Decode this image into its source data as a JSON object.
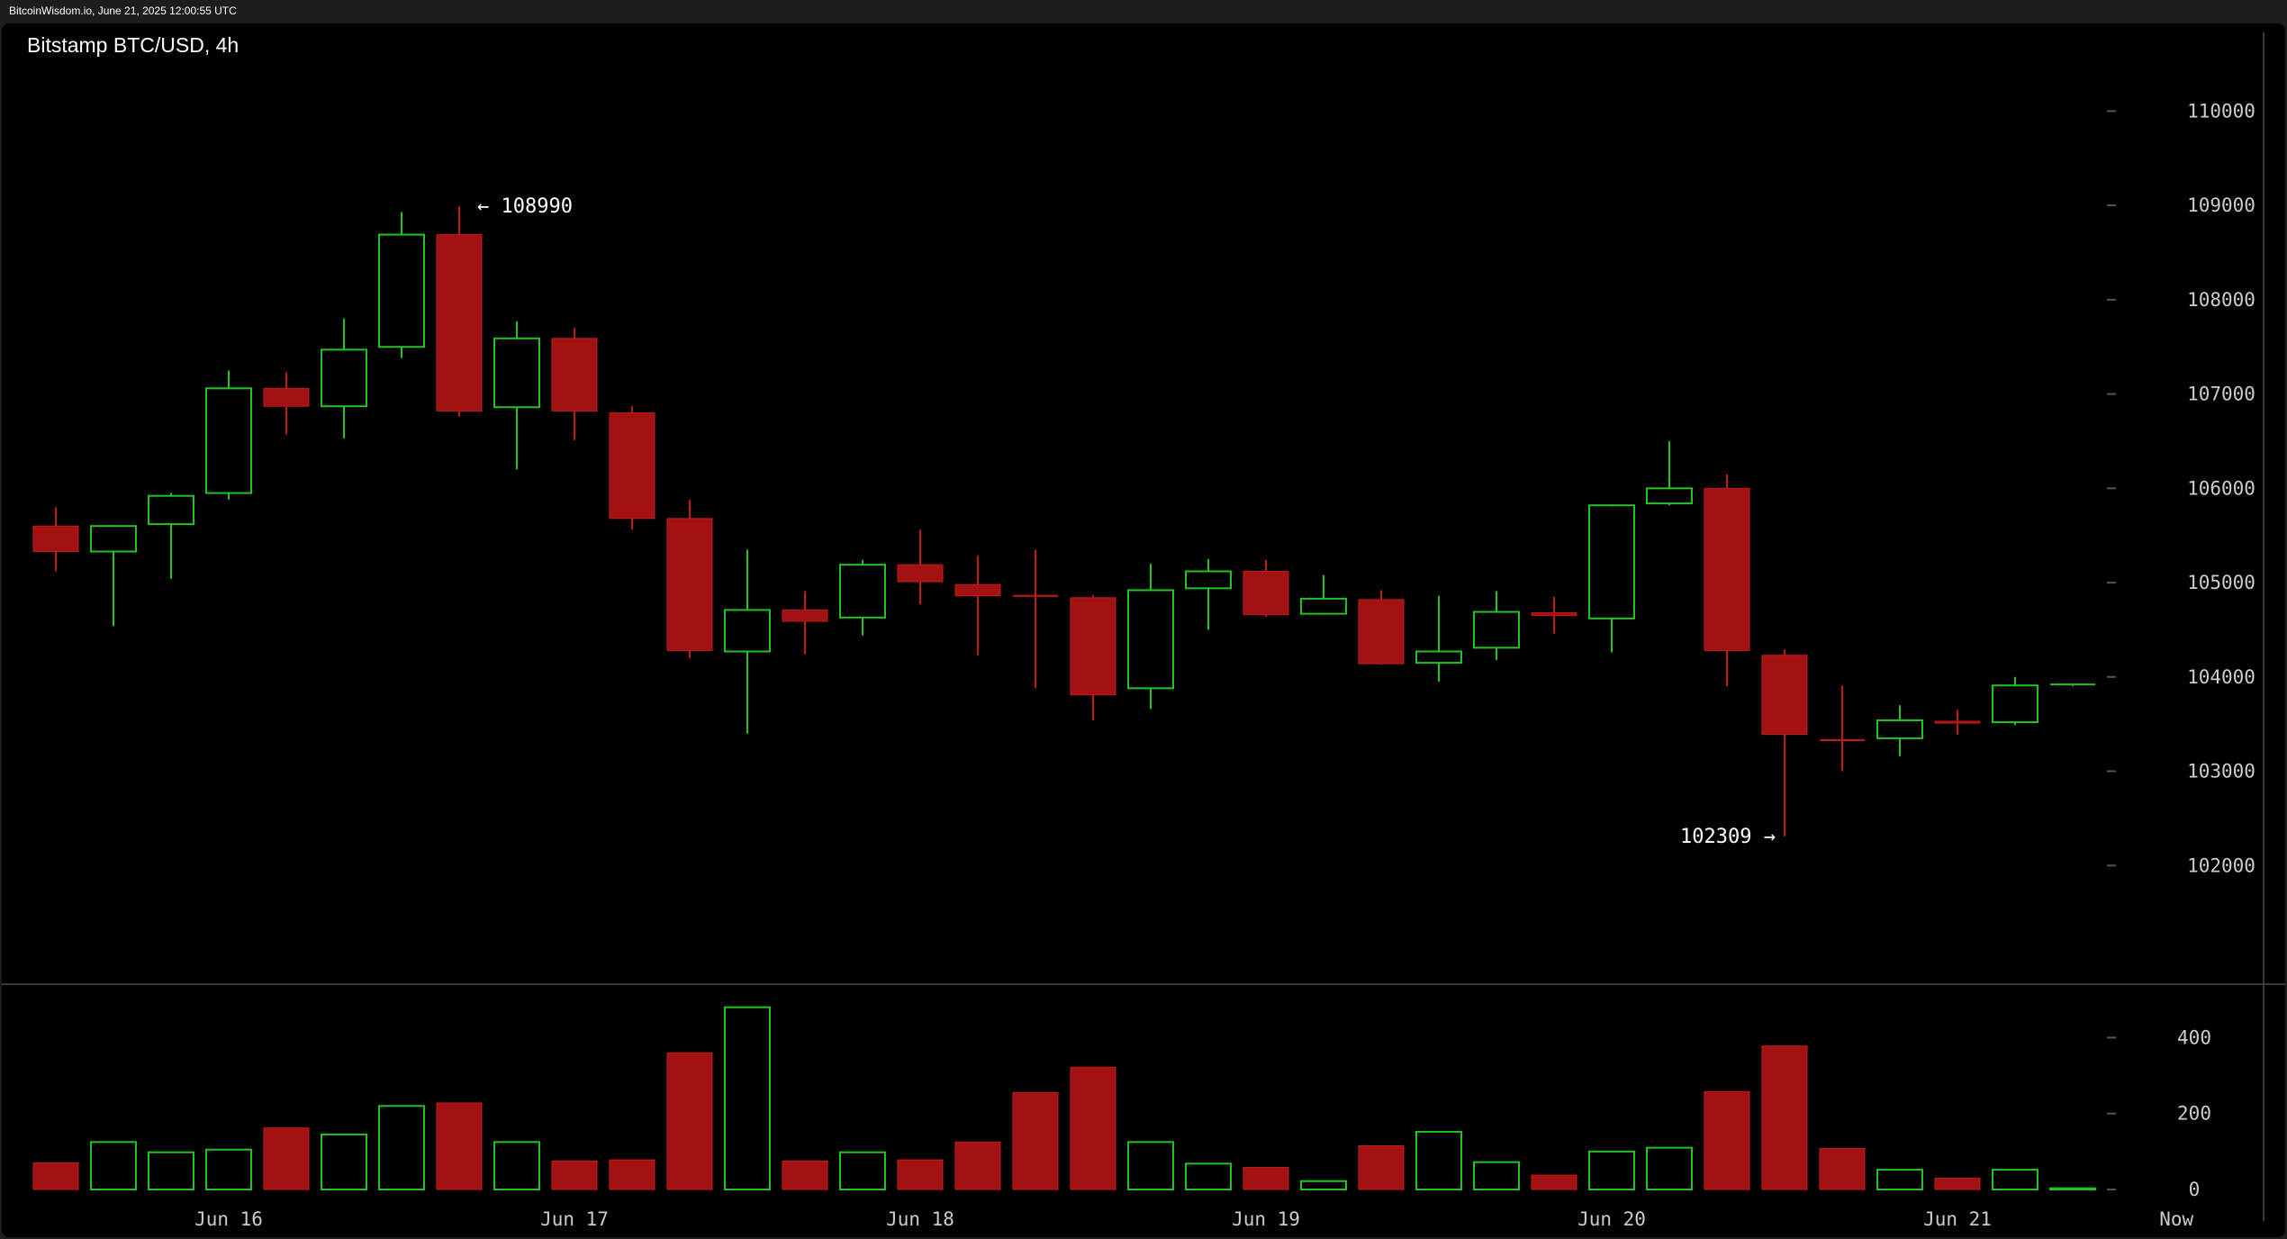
{
  "header": {
    "text": "BitcoinWisdom.io, June 21, 2025 12:00:55 UTC"
  },
  "chart_data": {
    "type": "candlestick",
    "title": "Bitstamp BTC/USD, 4h",
    "ylim": [
      101000,
      110500
    ],
    "y_ticks": [
      "102000",
      "103000",
      "104000",
      "105000",
      "106000",
      "107000",
      "108000",
      "109000",
      "110000"
    ],
    "volume_ticks": [
      "0",
      "200",
      "400"
    ],
    "volume_max": 510,
    "x_labels": [
      "Jun 16",
      "Jun 17",
      "Jun 18",
      "Jun 19",
      "Jun 20",
      "Jun 21",
      "Now"
    ],
    "label_candle_positions": [
      3,
      9,
      15,
      21,
      27,
      33,
      36.8
    ],
    "annotations": {
      "high": "← 108990",
      "low": "102309 →",
      "high_index": 7,
      "low_index": 30
    },
    "colors": {
      "up": "#22c422",
      "down": "#a31212",
      "down_edge": "#c21a1a",
      "axis_text": "#cccccc",
      "grid": "#3a3a3a",
      "text": "#ffffff"
    },
    "candles": [
      {
        "o": 105600,
        "h": 105800,
        "l": 105120,
        "c": 105330,
        "v": 70
      },
      {
        "o": 105330,
        "h": 105610,
        "l": 104540,
        "c": 105600,
        "v": 125
      },
      {
        "o": 105620,
        "h": 105950,
        "l": 105040,
        "c": 105920,
        "v": 98
      },
      {
        "o": 105950,
        "h": 107250,
        "l": 105880,
        "c": 107060,
        "v": 105
      },
      {
        "o": 107060,
        "h": 107230,
        "l": 106570,
        "c": 106870,
        "v": 162
      },
      {
        "o": 106870,
        "h": 107800,
        "l": 106530,
        "c": 107470,
        "v": 145
      },
      {
        "o": 107500,
        "h": 108930,
        "l": 107380,
        "c": 108690,
        "v": 220
      },
      {
        "o": 108690,
        "h": 108990,
        "l": 106760,
        "c": 106820,
        "v": 228
      },
      {
        "o": 106860,
        "h": 107770,
        "l": 106200,
        "c": 107590,
        "v": 125
      },
      {
        "o": 107590,
        "h": 107700,
        "l": 106510,
        "c": 106820,
        "v": 75
      },
      {
        "o": 106800,
        "h": 106870,
        "l": 105560,
        "c": 105680,
        "v": 78
      },
      {
        "o": 105680,
        "h": 105880,
        "l": 104200,
        "c": 104280,
        "v": 360
      },
      {
        "o": 104270,
        "h": 105350,
        "l": 103400,
        "c": 104710,
        "v": 480
      },
      {
        "o": 104710,
        "h": 104910,
        "l": 104240,
        "c": 104590,
        "v": 75
      },
      {
        "o": 104630,
        "h": 105240,
        "l": 104440,
        "c": 105190,
        "v": 98
      },
      {
        "o": 105190,
        "h": 105560,
        "l": 104770,
        "c": 105010,
        "v": 78
      },
      {
        "o": 104980,
        "h": 105290,
        "l": 104230,
        "c": 104860,
        "v": 125
      },
      {
        "o": 104860,
        "h": 105350,
        "l": 103880,
        "c": 104850,
        "v": 255
      },
      {
        "o": 104840,
        "h": 104870,
        "l": 103540,
        "c": 103810,
        "v": 322
      },
      {
        "o": 103880,
        "h": 105200,
        "l": 103660,
        "c": 104920,
        "v": 125
      },
      {
        "o": 104940,
        "h": 105250,
        "l": 104500,
        "c": 105120,
        "v": 68
      },
      {
        "o": 105120,
        "h": 105240,
        "l": 104640,
        "c": 104660,
        "v": 58
      },
      {
        "o": 104670,
        "h": 105080,
        "l": 104660,
        "c": 104830,
        "v": 22
      },
      {
        "o": 104820,
        "h": 104920,
        "l": 104130,
        "c": 104140,
        "v": 115
      },
      {
        "o": 104150,
        "h": 104860,
        "l": 103950,
        "c": 104270,
        "v": 152
      },
      {
        "o": 104310,
        "h": 104910,
        "l": 104180,
        "c": 104690,
        "v": 72
      },
      {
        "o": 104680,
        "h": 104850,
        "l": 104460,
        "c": 104650,
        "v": 38
      },
      {
        "o": 104620,
        "h": 105830,
        "l": 104260,
        "c": 105820,
        "v": 100
      },
      {
        "o": 105840,
        "h": 106500,
        "l": 105820,
        "c": 106000,
        "v": 110
      },
      {
        "o": 106000,
        "h": 106150,
        "l": 103900,
        "c": 104280,
        "v": 258
      },
      {
        "o": 104230,
        "h": 104290,
        "l": 102309,
        "c": 103390,
        "v": 378
      },
      {
        "o": 103330,
        "h": 103910,
        "l": 103000,
        "c": 103320,
        "v": 108
      },
      {
        "o": 103350,
        "h": 103700,
        "l": 103160,
        "c": 103540,
        "v": 52
      },
      {
        "o": 103530,
        "h": 103650,
        "l": 103390,
        "c": 103510,
        "v": 30
      },
      {
        "o": 103520,
        "h": 104000,
        "l": 103490,
        "c": 103910,
        "v": 52
      },
      {
        "o": 103910,
        "h": 103930,
        "l": 103900,
        "c": 103920,
        "v": 3
      }
    ]
  }
}
